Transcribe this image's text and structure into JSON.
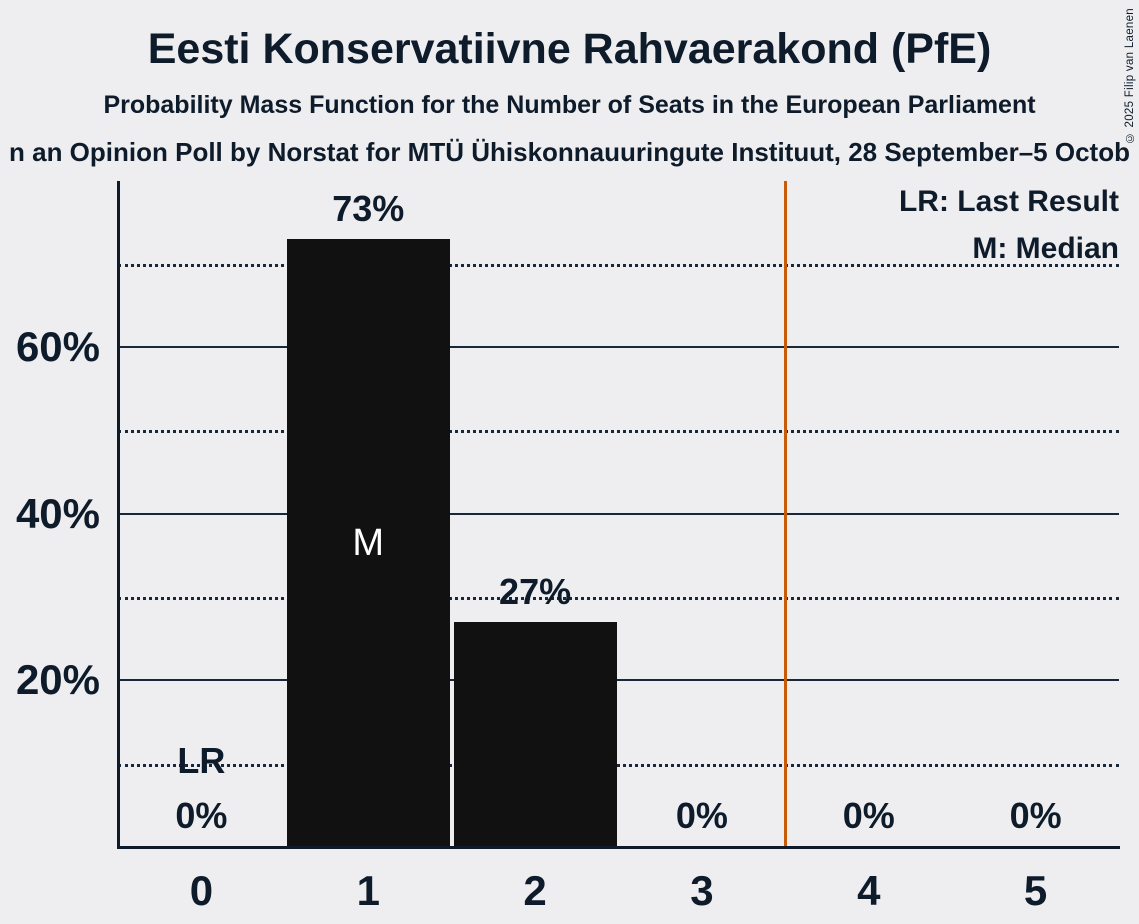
{
  "chart_data": {
    "type": "bar",
    "title": "Eesti Konservatiivne Rahvaerakond (PfE)",
    "subtitle": "Probability Mass Function for the Number of Seats in the European Parliament",
    "source_line": "n an Opinion Poll by Norstat for MTÜ Ühiskonnauuringute Instituut, 28 September–5 Octob",
    "categories": [
      "0",
      "1",
      "2",
      "3",
      "4",
      "5"
    ],
    "values": [
      0,
      73,
      27,
      0,
      0,
      0
    ],
    "bar_labels": [
      "0%",
      "73%",
      "27%",
      "0%",
      "0%",
      "0%"
    ],
    "xlabel": "",
    "ylabel": "",
    "ylim": [
      0,
      80
    ],
    "yticks": [
      20,
      40,
      60
    ],
    "ytick_labels": [
      "20%",
      "40%",
      "60%"
    ],
    "grid_solid": [
      20,
      40,
      60
    ],
    "grid_dotted": [
      10,
      30,
      50,
      70
    ],
    "grid": true,
    "legend_position": "top-right",
    "legend": [
      "LR: Last Result",
      "M: Median"
    ],
    "median": {
      "category_index": 1,
      "label": "M"
    },
    "last_result": {
      "category_index": 0,
      "label": "LR"
    },
    "vline_x": 3.5,
    "colors": {
      "background": "#EEEEF0",
      "text": "#0E1B2A",
      "bar": "#111111",
      "median_label": "#FFFFFF",
      "vline": "#C75B07"
    }
  },
  "copyright": "© 2025 Filip van Laenen"
}
